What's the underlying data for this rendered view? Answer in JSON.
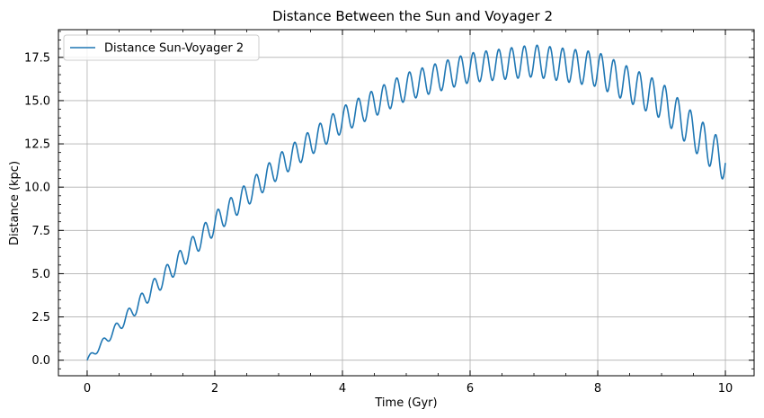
{
  "chart_data": {
    "type": "line",
    "title": "Distance Between the Sun and Voyager 2",
    "xlabel": "Time (Gyr)",
    "ylabel": "Distance (kpc)",
    "xlim": [
      -0.45,
      10.45
    ],
    "ylim": [
      -0.9,
      19.1
    ],
    "xticks": [
      0,
      2,
      4,
      6,
      8,
      10
    ],
    "xtick_labels": [
      "0",
      "2",
      "4",
      "6",
      "8",
      "10"
    ],
    "yticks": [
      0.0,
      2.5,
      5.0,
      7.5,
      10.0,
      12.5,
      15.0,
      17.5
    ],
    "ytick_labels": [
      "0.0",
      "2.5",
      "5.0",
      "7.5",
      "10.0",
      "12.5",
      "15.0",
      "17.5"
    ],
    "grid": true,
    "legend_position": "top-left",
    "series": [
      {
        "name": "Distance Sun-Voyager 2",
        "color": "#1f77b4",
        "x_start": 0,
        "x_end": 10,
        "trend": [
          [
            0,
            0.0
          ],
          [
            1,
            4.0
          ],
          [
            2,
            7.9
          ],
          [
            3,
            11.2
          ],
          [
            4,
            13.9
          ],
          [
            5,
            15.8
          ],
          [
            6,
            16.9
          ],
          [
            7,
            17.3
          ],
          [
            8,
            16.8
          ],
          [
            9,
            15.0
          ],
          [
            10,
            11.4
          ]
        ],
        "oscillation_period": 0.2,
        "oscillation_amplitude": [
          [
            0,
            0.15
          ],
          [
            1,
            0.5
          ],
          [
            2,
            0.65
          ],
          [
            4,
            0.75
          ],
          [
            6,
            0.85
          ],
          [
            8,
            1.0
          ],
          [
            10,
            1.1
          ]
        ]
      }
    ]
  }
}
